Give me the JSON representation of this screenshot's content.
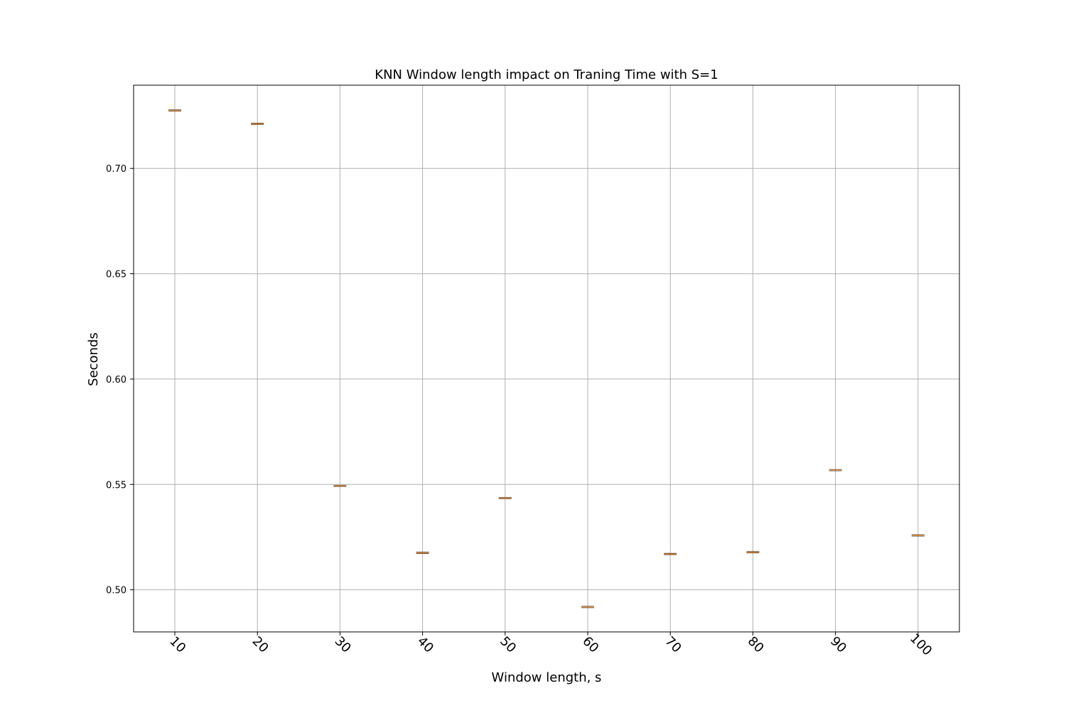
{
  "chart_data": {
    "type": "box",
    "title": "KNN Window length impact on Traning Time with S=1",
    "xlabel": "Window length, s",
    "ylabel": "Seconds",
    "categories": [
      "10",
      "20",
      "30",
      "40",
      "50",
      "60",
      "70",
      "80",
      "90",
      "100"
    ],
    "values": [
      0.7275,
      0.7212,
      0.5493,
      0.5175,
      0.5435,
      0.4918,
      0.517,
      0.5178,
      0.5568,
      0.5258
    ],
    "yticks": [
      0.5,
      0.55,
      0.6,
      0.65,
      0.7
    ],
    "ytick_labels": [
      "0.50",
      "0.55",
      "0.60",
      "0.65",
      "0.70"
    ],
    "ylim": [
      0.48,
      0.7395
    ],
    "xtick_rotation": -45,
    "grid": true,
    "colors": {
      "median": "#e08c3c",
      "box": "#000000",
      "grid": "#b0b0b0"
    }
  }
}
